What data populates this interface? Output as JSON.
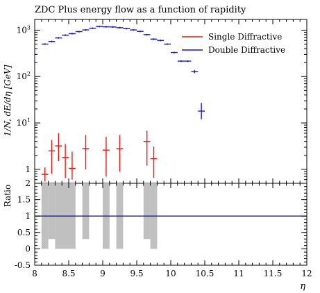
{
  "chart_data": {
    "type": "scatter",
    "title": "ZDC Plus energy flow as a function of rapidity",
    "xlabel": "η",
    "ylabel": "1/N, dE/dη [GeV]",
    "ratio_ylabel": "Ratio",
    "xlim": [
      8,
      12
    ],
    "ylim": [
      0.5,
      1700
    ],
    "yscale": "log",
    "ratio_ylim": [
      -0.5,
      2
    ],
    "x_ticks": [
      "8",
      "8.5",
      "9",
      "9.5",
      "10",
      "10.5",
      "11",
      "11.5",
      "12"
    ],
    "y_ticks": [
      {
        "base": "1",
        "exp": ""
      },
      {
        "base": "10",
        "exp": "1"
      },
      {
        "base": "10",
        "exp": "2"
      },
      {
        "base": "10",
        "exp": "3"
      }
    ],
    "ratio_ticks": [
      "-0.5",
      "0",
      "0.5",
      "1",
      "1.5",
      "2"
    ],
    "legend_placement": "top-right",
    "series": [
      {
        "name": "Single Diffractive",
        "color": "#e8160e",
        "points": [
          {
            "x": 8.15,
            "y": 0.78,
            "ylo": 0.55,
            "yhi": 1.1
          },
          {
            "x": 8.25,
            "y": 2.5,
            "ylo": 0.8,
            "yhi": 4.3
          },
          {
            "x": 8.35,
            "y": 3.2,
            "ylo": 1.5,
            "yhi": 6.0
          },
          {
            "x": 8.45,
            "y": 1.8,
            "ylo": 0.65,
            "yhi": 3.5
          },
          {
            "x": 8.55,
            "y": 1.05,
            "ylo": 0.6,
            "yhi": 2.4
          },
          {
            "x": 8.75,
            "y": 2.8,
            "ylo": 1.0,
            "yhi": 5.5
          },
          {
            "x": 9.05,
            "y": 2.6,
            "ylo": 0.7,
            "yhi": 5.0
          },
          {
            "x": 9.25,
            "y": 2.8,
            "ylo": 0.9,
            "yhi": 5.5
          },
          {
            "x": 9.65,
            "y": 4.0,
            "ylo": 1.2,
            "yhi": 6.8
          },
          {
            "x": 9.75,
            "y": 1.7,
            "ylo": 0.65,
            "yhi": 3.1
          }
        ]
      },
      {
        "name": "Double Diffractive",
        "color": "#1414c8",
        "points": [
          {
            "x": 8.15,
            "y": 500
          },
          {
            "x": 8.25,
            "y": 570
          },
          {
            "x": 8.35,
            "y": 680
          },
          {
            "x": 8.45,
            "y": 780
          },
          {
            "x": 8.55,
            "y": 840
          },
          {
            "x": 8.65,
            "y": 930
          },
          {
            "x": 8.75,
            "y": 1010
          },
          {
            "x": 8.85,
            "y": 1100
          },
          {
            "x": 8.95,
            "y": 1200
          },
          {
            "x": 9.05,
            "y": 1180
          },
          {
            "x": 9.15,
            "y": 1170
          },
          {
            "x": 9.25,
            "y": 1130
          },
          {
            "x": 9.35,
            "y": 1080
          },
          {
            "x": 9.45,
            "y": 1010
          },
          {
            "x": 9.55,
            "y": 940
          },
          {
            "x": 9.65,
            "y": 800
          },
          {
            "x": 9.75,
            "y": 640
          },
          {
            "x": 9.85,
            "y": 600
          },
          {
            "x": 9.95,
            "y": 500
          },
          {
            "x": 10.05,
            "y": 330
          },
          {
            "x": 10.15,
            "y": 215
          },
          {
            "x": 10.25,
            "y": 215
          },
          {
            "x": 10.35,
            "y": 128,
            "ylo": 118,
            "yhi": 138
          },
          {
            "x": 10.45,
            "y": 18,
            "ylo": 12,
            "yhi": 27
          }
        ]
      }
    ],
    "ratio_reference": 1,
    "ratio_bands": [
      {
        "x0": 8.1,
        "x1": 8.2,
        "lo": 0,
        "hi": 2
      },
      {
        "x0": 8.2,
        "x1": 8.3,
        "lo": 0.3,
        "hi": 2
      },
      {
        "x0": 8.3,
        "x1": 8.6,
        "lo": 0,
        "hi": 2
      },
      {
        "x0": 8.7,
        "x1": 8.8,
        "lo": 0.3,
        "hi": 2
      },
      {
        "x0": 9.0,
        "x1": 9.1,
        "lo": 0,
        "hi": 2
      },
      {
        "x0": 9.2,
        "x1": 9.3,
        "lo": 0,
        "hi": 2
      },
      {
        "x0": 9.6,
        "x1": 9.7,
        "lo": 0.3,
        "hi": 2
      },
      {
        "x0": 9.7,
        "x1": 9.8,
        "lo": 0,
        "hi": 2
      }
    ]
  }
}
